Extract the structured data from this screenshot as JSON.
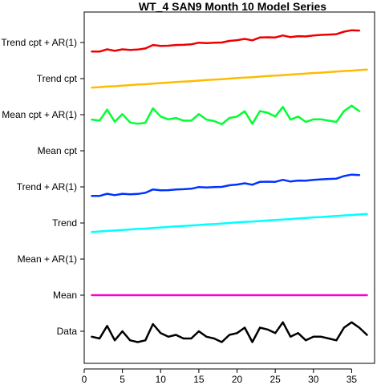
{
  "chart_data": {
    "type": "line",
    "title": "WT_4 SAN9 Month 10 Model Series",
    "xlabel": "",
    "ylabel": "",
    "xlim": [
      0,
      38
    ],
    "x_ticks": [
      0,
      5,
      10,
      15,
      20,
      25,
      30,
      35
    ],
    "x": [
      1,
      2,
      3,
      4,
      5,
      6,
      7,
      8,
      9,
      10,
      11,
      12,
      13,
      14,
      15,
      16,
      17,
      18,
      19,
      20,
      21,
      22,
      23,
      24,
      25,
      26,
      27,
      28,
      29,
      30,
      31,
      32,
      33,
      34,
      35,
      36,
      37
    ],
    "grid": false,
    "legend": "none",
    "rows": [
      {
        "label": "Data",
        "color": "#000000",
        "values": [
          -0.3,
          -0.4,
          0.3,
          -0.5,
          0.0,
          -0.5,
          -0.6,
          -0.5,
          0.4,
          -0.1,
          -0.3,
          -0.2,
          -0.4,
          -0.4,
          0.0,
          -0.3,
          -0.4,
          -0.6,
          -0.2,
          -0.1,
          0.2,
          -0.6,
          0.2,
          0.1,
          -0.1,
          0.5,
          -0.3,
          -0.1,
          -0.5,
          -0.3,
          -0.3,
          -0.4,
          -0.5,
          0.2,
          0.5,
          0.2,
          -0.2
        ]
      },
      {
        "label": "Mean",
        "color": "#ff00cc",
        "values": [
          0,
          0,
          0,
          0,
          0,
          0,
          0,
          0,
          0,
          0,
          0,
          0,
          0,
          0,
          0,
          0,
          0,
          0,
          0,
          0,
          0,
          0,
          0,
          0,
          0,
          0,
          0,
          0,
          0,
          0,
          0,
          0,
          0,
          0,
          0,
          0,
          0
        ]
      },
      {
        "label": "Mean + AR(1)",
        "color": "#ff00cc",
        "values": []
      },
      {
        "label": "Trend",
        "color": "#00ffff",
        "values": [
          -0.5,
          -0.47,
          -0.44,
          -0.42,
          -0.39,
          -0.36,
          -0.33,
          -0.31,
          -0.28,
          -0.25,
          -0.22,
          -0.19,
          -0.17,
          -0.14,
          -0.11,
          -0.08,
          -0.06,
          -0.03,
          0.0,
          0.03,
          0.06,
          0.08,
          0.11,
          0.14,
          0.17,
          0.19,
          0.22,
          0.25,
          0.28,
          0.31,
          0.33,
          0.36,
          0.39,
          0.42,
          0.44,
          0.47,
          0.5
        ]
      },
      {
        "label": "Trend + AR(1)",
        "color": "#0033ff",
        "values": [
          -0.5,
          -0.5,
          -0.38,
          -0.46,
          -0.38,
          -0.41,
          -0.39,
          -0.33,
          -0.14,
          -0.19,
          -0.18,
          -0.14,
          -0.13,
          -0.1,
          -0.01,
          -0.03,
          -0.01,
          0.0,
          0.09,
          0.13,
          0.2,
          0.12,
          0.28,
          0.29,
          0.28,
          0.39,
          0.3,
          0.35,
          0.34,
          0.39,
          0.42,
          0.44,
          0.46,
          0.6,
          0.68,
          0.66,
          null
        ]
      },
      {
        "label": "Mean cpt",
        "color": "#00ff33",
        "values": []
      },
      {
        "label": "Mean cpt + AR(1)",
        "color": "#00ff33",
        "values": [
          -0.27,
          -0.33,
          0.28,
          -0.39,
          0.03,
          -0.43,
          -0.5,
          -0.45,
          0.35,
          -0.1,
          -0.26,
          -0.18,
          -0.33,
          -0.33,
          0.03,
          -0.27,
          -0.35,
          -0.53,
          -0.18,
          -0.1,
          0.19,
          -0.5,
          0.2,
          0.11,
          -0.1,
          0.43,
          -0.27,
          -0.1,
          -0.4,
          -0.26,
          -0.26,
          -0.33,
          -0.4,
          0.2,
          0.5,
          0.2,
          null
        ]
      },
      {
        "label": "Trend cpt",
        "color": "#ffbb00",
        "values": [
          -0.5,
          -0.47,
          -0.44,
          -0.42,
          -0.39,
          -0.36,
          -0.33,
          -0.31,
          -0.28,
          -0.25,
          -0.22,
          -0.19,
          -0.17,
          -0.14,
          -0.11,
          -0.08,
          -0.06,
          -0.03,
          0.0,
          0.03,
          0.06,
          0.08,
          0.11,
          0.14,
          0.17,
          0.19,
          0.22,
          0.25,
          0.28,
          0.31,
          0.33,
          0.36,
          0.39,
          0.42,
          0.44,
          0.47,
          0.5
        ]
      },
      {
        "label": "Trend cpt + AR(1)",
        "color": "#ee0000",
        "values": [
          -0.5,
          -0.5,
          -0.38,
          -0.46,
          -0.38,
          -0.41,
          -0.39,
          -0.33,
          -0.14,
          -0.19,
          -0.18,
          -0.14,
          -0.13,
          -0.1,
          -0.01,
          -0.03,
          -0.01,
          0.0,
          0.09,
          0.13,
          0.2,
          0.12,
          0.28,
          0.29,
          0.28,
          0.39,
          0.3,
          0.35,
          0.34,
          0.39,
          0.42,
          0.44,
          0.46,
          0.6,
          0.68,
          0.66,
          null
        ]
      }
    ]
  }
}
